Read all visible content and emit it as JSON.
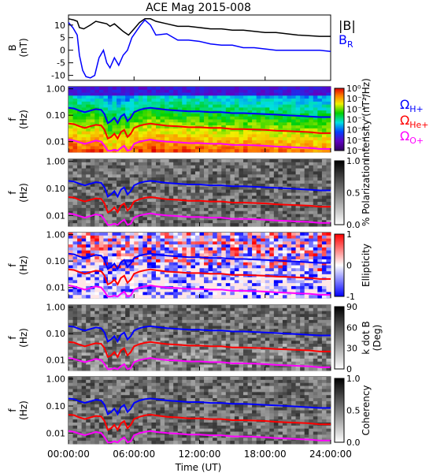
{
  "title": "ACE Mag 2015-008",
  "xlabel": "Time (UT)",
  "x_ticks": [
    "00:00:00",
    "06:00:00",
    "12:00:00",
    "18:00:00",
    "24:00:00"
  ],
  "legend": {
    "b_mag": "|B|",
    "b_r": "B",
    "b_r_sub": "R",
    "omega_h_sub": "H+",
    "omega_he_sub": "He+",
    "omega_o_sub": "O+",
    "omega_symbol": "Ω"
  },
  "colors": {
    "b_mag": "#000000",
    "b_r": "#0000ff",
    "omega_h": "#0000ff",
    "omega_he": "#ff0000",
    "omega_o": "#ff00ff"
  },
  "panels": [
    {
      "id": "b-field",
      "type": "line",
      "ylabel": "B",
      "yunits": "(nT)",
      "y_ticks": [
        "10",
        "5",
        "0",
        "-5",
        "-10"
      ],
      "ylim": [
        -12,
        14
      ]
    },
    {
      "id": "intensity",
      "type": "heatmap",
      "ylabel": "f",
      "yunits": "(Hz)",
      "y_ticks": [
        "1.00",
        "0.10",
        "0.01"
      ],
      "colorbar_label": "Intensity (nT²/Hz)",
      "colorbar_ticks": [
        "10⁰",
        "10⁻¹",
        "10⁻²",
        "10⁻³",
        "10⁻⁴",
        "10⁻⁵",
        "10⁻⁶"
      ],
      "colormap": "rainbow"
    },
    {
      "id": "polarization",
      "type": "heatmap",
      "ylabel": "f",
      "yunits": "(Hz)",
      "y_ticks": [
        "1.00",
        "0.10",
        "0.01"
      ],
      "colorbar_label": "% Polarization",
      "colorbar_ticks": [
        "1.0",
        "0.5",
        "0.0"
      ],
      "colormap": "gray"
    },
    {
      "id": "ellipticity",
      "type": "heatmap",
      "ylabel": "f",
      "yunits": "(Hz)",
      "y_ticks": [
        "1.00",
        "0.10",
        "0.01"
      ],
      "colorbar_label": "Ellipticity",
      "colorbar_ticks": [
        "1",
        "0",
        "-1"
      ],
      "colormap": "bwr"
    },
    {
      "id": "k-dot-b",
      "type": "heatmap",
      "ylabel": "f",
      "yunits": "(Hz)",
      "y_ticks": [
        "1.00",
        "0.10",
        "0.01"
      ],
      "colorbar_label": "k dot B",
      "colorbar_label2": "(Deg)",
      "colorbar_ticks": [
        "90",
        "60",
        "30",
        "0"
      ],
      "colormap": "gray"
    },
    {
      "id": "coherency",
      "type": "heatmap",
      "ylabel": "f",
      "yunits": "(Hz)",
      "y_ticks": [
        "1.00",
        "0.10",
        "0.01"
      ],
      "colorbar_label": "Coherency",
      "colorbar_ticks": [
        "1.0",
        "0.5",
        "0.0"
      ],
      "colormap": "gray"
    }
  ],
  "chart_data": {
    "type": "heatmap",
    "title": "ACE Mag 2015-008",
    "xlabel": "Time (UT)",
    "xlim_hours": [
      0,
      24
    ],
    "freq_lim_hz": [
      0.004,
      1.2
    ],
    "freq_scale": "log",
    "line_panel": {
      "ylim_nT": [
        -12,
        14
      ],
      "series": [
        {
          "name": "|B|",
          "color": "#000000",
          "x_hours": [
            0,
            0.5,
            0.8,
            1.0,
            1.4,
            2.0,
            2.5,
            3.0,
            3.5,
            3.8,
            4.2,
            4.6,
            5.0,
            5.5,
            6.0,
            6.5,
            7.0,
            7.5,
            8.0,
            9.0,
            10.0,
            11.0,
            12.0,
            13.0,
            14.0,
            15.0,
            16.0,
            17.0,
            18.0,
            19.0,
            20.0,
            21.0,
            22.0,
            23.0,
            24.0
          ],
          "values": [
            12.5,
            12.0,
            11.5,
            9.0,
            8.5,
            10.0,
            11.5,
            11.0,
            10.5,
            9.5,
            10.5,
            9.0,
            7.5,
            6.0,
            8.5,
            11.0,
            12.5,
            12.5,
            11.5,
            10.5,
            9.5,
            9.5,
            9.0,
            8.5,
            8.5,
            8.0,
            8.0,
            7.5,
            7.0,
            7.0,
            6.5,
            6.0,
            5.8,
            5.5,
            5.5
          ]
        },
        {
          "name": "B_R",
          "color": "#0000ff",
          "x_hours": [
            0,
            0.4,
            0.8,
            1.0,
            1.3,
            1.6,
            2.0,
            2.4,
            2.8,
            3.2,
            3.5,
            3.8,
            4.2,
            4.6,
            5.0,
            5.4,
            5.8,
            6.2,
            6.6,
            7.0,
            7.5,
            8.0,
            9.0,
            10.0,
            11.0,
            12.0,
            13.0,
            14.0,
            15.0,
            16.0,
            17.0,
            18.0,
            19.0,
            20.0,
            21.0,
            22.0,
            23.0,
            24.0
          ],
          "values": [
            11.0,
            9.0,
            6.0,
            -2.0,
            -8.0,
            -10.5,
            -11.0,
            -10.0,
            -3.0,
            0.0,
            -5.0,
            -7.0,
            -3.0,
            -6.0,
            -2.0,
            0.0,
            5.0,
            7.5,
            10.0,
            12.0,
            10.0,
            6.0,
            6.5,
            4.0,
            4.0,
            3.5,
            2.5,
            2.0,
            2.0,
            1.0,
            1.0,
            0.5,
            0.0,
            0.0,
            0.0,
            0.0,
            0.0,
            -0.5
          ]
        }
      ]
    },
    "cyclotron_frequencies_hz": {
      "x_hours": [
        0,
        0.5,
        1.0,
        1.5,
        2.0,
        2.5,
        3.0,
        3.3,
        3.6,
        3.9,
        4.2,
        4.5,
        4.8,
        5.1,
        5.4,
        5.7,
        6.0,
        6.5,
        7.0,
        7.5,
        8.0,
        9.0,
        10.0,
        11.0,
        12.0,
        13.0,
        14.0,
        15.0,
        16.0,
        17.0,
        18.0,
        19.0,
        20.0,
        21.0,
        22.0,
        23.0,
        24.0
      ],
      "series": [
        {
          "name": "H+",
          "color": "#0000ff",
          "values": [
            0.19,
            0.18,
            0.15,
            0.13,
            0.15,
            0.17,
            0.16,
            0.11,
            0.05,
            0.06,
            0.08,
            0.05,
            0.09,
            0.11,
            0.06,
            0.08,
            0.13,
            0.16,
            0.18,
            0.19,
            0.18,
            0.16,
            0.15,
            0.14,
            0.14,
            0.13,
            0.13,
            0.12,
            0.12,
            0.115,
            0.11,
            0.105,
            0.1,
            0.095,
            0.09,
            0.085,
            0.085
          ]
        },
        {
          "name": "He+",
          "color": "#ff0000",
          "values": [
            0.048,
            0.046,
            0.038,
            0.033,
            0.038,
            0.043,
            0.041,
            0.028,
            0.013,
            0.015,
            0.02,
            0.013,
            0.023,
            0.028,
            0.015,
            0.02,
            0.033,
            0.04,
            0.045,
            0.048,
            0.045,
            0.04,
            0.038,
            0.035,
            0.035,
            0.033,
            0.033,
            0.03,
            0.03,
            0.029,
            0.028,
            0.026,
            0.025,
            0.024,
            0.023,
            0.021,
            0.021
          ]
        },
        {
          "name": "O+",
          "color": "#ff00ff",
          "values": [
            0.012,
            0.011,
            0.0095,
            0.0083,
            0.0095,
            0.011,
            0.01,
            0.007,
            0.0045,
            0.0045,
            0.005,
            0.0045,
            0.0058,
            0.007,
            0.0045,
            0.005,
            0.0083,
            0.01,
            0.011,
            0.012,
            0.011,
            0.01,
            0.0095,
            0.0088,
            0.0088,
            0.0083,
            0.0083,
            0.0075,
            0.0075,
            0.0073,
            0.007,
            0.0065,
            0.0063,
            0.006,
            0.0058,
            0.0053,
            0.0053
          ]
        }
      ]
    }
  }
}
